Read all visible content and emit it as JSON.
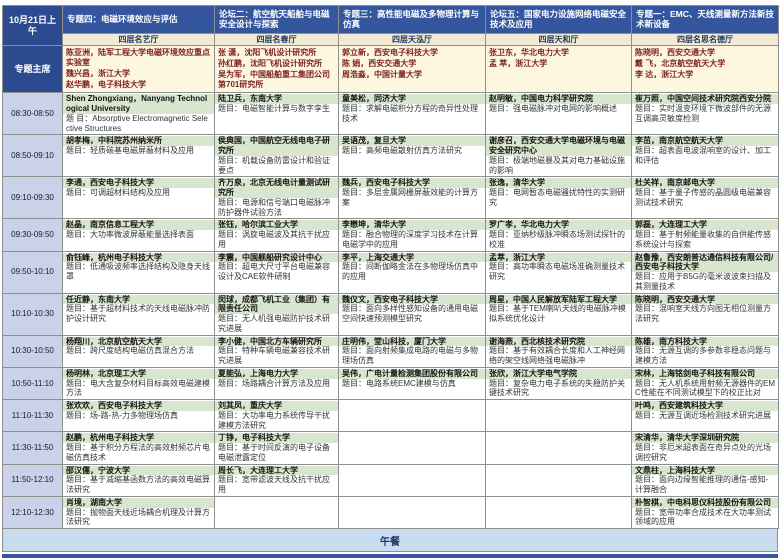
{
  "header": {
    "date": "10月21日上午",
    "chair_label": "专题主席"
  },
  "times": [
    "08:30-08:50",
    "08:50-09:10",
    "09:10-09:30",
    "09:30-09:50",
    "09:50-10:10",
    "10:10-10:30",
    "10:30-10:50",
    "10:50-11:10",
    "11:10-11:30",
    "11:30-11:50",
    "11:50-12:10",
    "12:10-12:30"
  ],
  "columns": [
    {
      "session": "专题四：电磁环境效应与评估",
      "room": "四层名艺厅",
      "chairs": [
        "陈亚洲，陆军工程大学电磁环境效应重点实验室",
        "魏兴昌，浙江大学",
        "赵华鹏，电子科技大学"
      ],
      "talks": [
        {
          "speaker": "Shen Zhongxiang，Nanyang Technological University",
          "title": "题 目：Absorptive Electromagnetic Selective Structures"
        },
        {
          "speaker": "胡孝梅，中科院苏州纳米所",
          "title": "题目：轻质碳基电磁屏蔽材料及应用"
        },
        {
          "speaker": "李通，西安电子科技大学",
          "title": "题目：可调超材料结构及应用"
        },
        {
          "speaker": "赵晶，南京信息工程大学",
          "title": "题目：大功率微波屏蔽能量选择表面"
        },
        {
          "speaker": "俞钰峰，杭州电子科技大学",
          "title": "题目：低通吸波频率选择结构及隐身天线罩"
        },
        {
          "speaker": "任近静，东南大学",
          "title": "题目：基于超材料技术的天线电磁脉冲防护设计研究"
        },
        {
          "speaker": "杨翔川，北京航空航天大学",
          "title": "题目：跨尺度结构电磁仿真混合方法"
        },
        {
          "speaker": "杨明林，北京理工大学",
          "title": "题目：电大含复杂材料目标高效电磁建模方法"
        },
        {
          "speaker": "张欢欢，西安电子科技大学",
          "title": "题目：场-路-热-力多物理场仿真"
        },
        {
          "speaker": "赵鹏，杭州电子科技大学",
          "title": "题目：基于积分方程法的高效射频芯片电磁仿真技术"
        },
        {
          "speaker": "邵汉儒，宁波大学",
          "title": "题目：基于减缩基函数方法的高效电磁算法研究"
        },
        {
          "speaker": "肖境，湖南大学",
          "title": "题目：抛物面天线近场耦合机理及计算方法研究"
        }
      ]
    },
    {
      "session": "论坛二：航空航天船舶与电磁安全设计与探索",
      "room": "四层名春厅",
      "chairs": [
        "张 潇，沈阳飞机设计研究所",
        "孙红鹏，沈阳飞机设计研究所",
        "吴为军，中国船舶重工集团公司第701研究所"
      ],
      "talks": [
        {
          "speaker": "陆卫兵，东南大学",
          "title": "题目：电磁智能计算与数字孪生"
        },
        {
          "speaker": "侯典国，中国航空无线电电子研究所",
          "title": "题目：机载设备防雷设计和验证要点"
        },
        {
          "speaker": "齐万泉，北京无线电计量测试研究所",
          "title": "题目：电源和信号端口电磁脉冲防护器件试验方法"
        },
        {
          "speaker": "张钰，哈尔滨工业大学",
          "title": "题目：涡旋电磁波及其抗干扰应用"
        },
        {
          "speaker": "李震，中国舰船研究设计中心",
          "title": "题目：超电大尺寸平台电磁兼容设计及CAE软件研制"
        },
        {
          "speaker": "闵球，成都飞机工业（集团）有限责任公司",
          "title": "题目：无人机强电磁防护技术研究进展"
        },
        {
          "speaker": "李小健，中国北方车辆研究所",
          "title": "题目：特种车辆电磁兼容技术研究进展"
        },
        {
          "speaker": "夏能弘，上海电力大学",
          "title": "题目：场路耦合计算方法及应用"
        },
        {
          "speaker": "刘其凤，重庆大学",
          "title": "题目：大功率电力系统传导干扰建模方法研究"
        },
        {
          "speaker": "丁铮，电子科技大学",
          "title": "题目：基于时间反演的电子设备电磁泄露定位"
        },
        {
          "speaker": "周长飞，大连理工大学",
          "title": "题目：宽带滤波天线及抗干扰应用"
        },
        null
      ]
    },
    {
      "session": "专题三：高性能电磁及多物理计算与仿真",
      "room": "四层天泓厅",
      "chairs": [
        "郭立新，西安电子科技大学",
        "陈 娟，西安交通大学",
        "周浩淼，中国计量大学"
      ],
      "talks": [
        {
          "speaker": "童美松，同济大学",
          "title": "题目：求解电磁积分方程的奇异性处理技术"
        },
        {
          "speaker": "吴语茂，复旦大学",
          "title": "题目：高频电磁散射仿真方法研究"
        },
        {
          "speaker": "魏兵，西安电子科技大学",
          "title": "题目：多层金属网栅屏蔽效能的计算方案"
        },
        {
          "speaker": "李懋坤，清华大学",
          "title": "题目：融合物理的深度学习技术在计算电磁学中的应用"
        },
        {
          "speaker": "李平，上海交通大学",
          "title": "题目：间断伽略金法在多物理场仿真中的应用"
        },
        {
          "speaker": "魏仪文，西安电子科技大学",
          "title": "题目：面向多样性感知设备的通用电磁空间快速预测模型研究"
        },
        {
          "speaker": "庄明伟，堂山科技，厦门大学",
          "title": "题目：面向射频集成电路的电磁与多物理场仿真"
        },
        {
          "speaker": "吴伟，广电计量检测集团股份有限公司",
          "title": "题目：电路系统EMC建模与仿真"
        },
        null,
        null,
        null,
        null
      ]
    },
    {
      "session": "论坛五：国家电力设施网络电磁安全技术及应用",
      "room": "四层天和厅",
      "chairs": [
        "张卫东，华北电力大学",
        "孟 萃，浙江大学"
      ],
      "talks": [
        {
          "speaker": "赵明敏，中国电力科学研究院",
          "title": "题目：强电磁脉冲对电网的影响概述"
        },
        {
          "speaker": "谢彦召，西安交通大学电磁环境与电磁安全研究中心",
          "title": "题目：极端地磁暴及其对电力基础设施的影响"
        },
        {
          "speaker": "张逸，清华大学",
          "title": "题目：电网暂态电磁骚扰特性的实测研究"
        },
        {
          "speaker": "罗广孝，华北电力大学",
          "title": "题目：亚纳秒级脉冲瞬态场测试探针的校准"
        },
        {
          "speaker": "孟萃，浙江大学",
          "title": "题目：高功率瞬态电磁场准确测量技术研究"
        },
        {
          "speaker": "周星，中国人民解放军陆军工程大学",
          "title": "题目：基于TEM喇叭天线的电磁脉冲模拟系统优化设计"
        },
        {
          "speaker": "谢海燕，西北核技术研究院",
          "title": "题目：基于有效耦合长度和人工神经网络的架空线网络强电磁脉冲"
        },
        {
          "speaker": "张欣，浙江大学电气学院",
          "title": "题目：复杂电力电子系统的失稳防护关键技术研究"
        },
        null,
        null,
        null,
        null
      ]
    },
    {
      "session": "专题一：EMC、天线测量新方法新技术新设备",
      "room": "四层名思名德厅",
      "chairs": [
        "陈晓明，西安交通大学",
        "戴 飞，北京航空航天大学",
        "李 达，浙江大学"
      ],
      "talks": [
        {
          "speaker": "崔万照，中国空间技术研究院西安分院",
          "title": "题目：实时温变环境下微波部件的无源互调高灵敏度检测"
        },
        {
          "speaker": "李茁，南京航空航天大学",
          "title": "题目：超表面电波混响室的设计、加工和评估"
        },
        {
          "speaker": "杜关祥，南京邮电大学",
          "title": "题目：基于量子传感的晶圆级电磁兼容测试技术研究"
        },
        {
          "speaker": "郭磊，大连理工大学",
          "title": "题目：基于射频能量收集的自供能传感系统设计与探索"
        },
        {
          "speaker": "赵鲁豫，西安朗普达通信科技有限公司/西安电子科技大学",
          "title": "题目：应用于B5G的毫米波波束扫描及其测量技术"
        },
        {
          "speaker": "陈晓明，西安交通大学",
          "title": "题目：混响室天线方向图无相位测量方法研究"
        },
        {
          "speaker": "陈雄，南方科技大学",
          "title": "题目：无源互调的多参数非稳态问题与建模方法"
        },
        {
          "speaker": "宋林，上海铭剑电子科技有限公司",
          "title": "题目：无人机系统用射频无源器件的EMC性能在不同测试模型下的校正比对"
        },
        {
          "speaker": "叶鸣，西安建筑科技大学",
          "title": "题目：无源互调近场检测技术研究进展"
        },
        {
          "speaker": "宋清华，清华大学深圳研究院",
          "title": "题目：非厄米超表面在奇异点处的光场调控研究"
        },
        {
          "speaker": "文鼎柱，上海科技大学",
          "title": "题目：面向边缘智能推理的通信-感知-计算融合"
        },
        {
          "speaker": "朴智棋，中电科思仪科技股份有限公司",
          "title": "题目：宽带功率合成技术在大功率测试领域的应用"
        }
      ]
    }
  ],
  "footer": {
    "lunch": "午餐"
  },
  "colors": {
    "header_blue": "#34569e",
    "header_dark_blue": "#2c4a8f",
    "room_bg": "#f2ead2",
    "chair_bg": "#fdf7e0",
    "chair_text": "#7d1f1f",
    "time_bg": "#c9d2e8",
    "name_bg": "#d9e6ce",
    "lunch_bg": "#c9dbef"
  }
}
